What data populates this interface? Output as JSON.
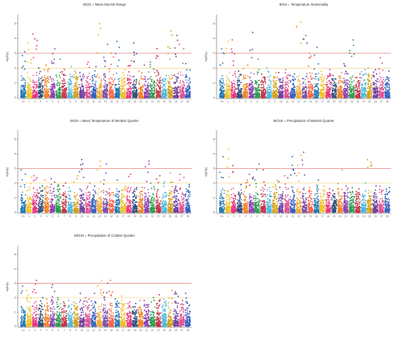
{
  "figure": {
    "chromosome_tick_labels": [
      "Un",
      "1",
      "2",
      "3",
      "4",
      "5",
      "6",
      "7",
      "8",
      "9",
      "10",
      "11",
      "12",
      "13",
      "14",
      "15",
      "16",
      "17",
      "18",
      "19",
      "20",
      "21",
      "22",
      "23",
      "24",
      "25",
      "26",
      "27",
      "28"
    ],
    "palette": [
      "#1f78b4",
      "#f0c020",
      "#e8347e",
      "#2f4f7f",
      "#f08020",
      "#8a3fb0",
      "#2a9d4a",
      "#c8324a",
      "#4ab8e0",
      "#d4a017",
      "#6b3fa0",
      "#e05090",
      "#3060c0",
      "#f4a82e",
      "#7a4fa8",
      "#ff6040"
    ],
    "threshold_colors": {
      "upper": "#e0706a",
      "lower": "#f0d080"
    }
  },
  "chart_data": [
    {
      "type": "scatter",
      "subtype": "manhattan",
      "title": "BIO2 = Mean Diurnal Range",
      "ylabel": "-log10(p)",
      "xlabel": "",
      "ylim": [
        0,
        5.5
      ],
      "yticks": [
        0,
        1,
        2,
        3,
        4,
        5
      ],
      "thresholds": [
        3.0,
        2.0
      ],
      "x": [
        "Un",
        "1",
        "2",
        "3",
        "4",
        "5",
        "6",
        "7",
        "8",
        "9",
        "10",
        "11",
        "12",
        "13",
        "14",
        "15",
        "16",
        "17",
        "18",
        "19",
        "20",
        "21",
        "22",
        "23",
        "24",
        "25",
        "26",
        "27",
        "28"
      ],
      "peaks": [
        3.1,
        3.7,
        4.3,
        2.0,
        2.2,
        3.3,
        2.6,
        1.9,
        2.1,
        1.8,
        1.7,
        2.4,
        2.1,
        5.0,
        3.6,
        3.0,
        3.8,
        1.9,
        2.5,
        3.7,
        1.8,
        2.2,
        2.4,
        3.3,
        1.5,
        4.5,
        4.2,
        3.6,
        2.3
      ]
    },
    {
      "type": "scatter",
      "subtype": "manhattan",
      "title": "BIO4 = Temperature Seasonality",
      "ylabel": "-log10(p)",
      "xlabel": "",
      "ylim": [
        0,
        5.5
      ],
      "yticks": [
        0,
        1,
        2,
        3,
        4,
        5
      ],
      "thresholds": [
        3.0,
        2.0
      ],
      "x": [
        "Un",
        "1",
        "2",
        "3",
        "4",
        "5",
        "6",
        "7",
        "8",
        "9",
        "10",
        "11",
        "12",
        "13",
        "14",
        "15",
        "16",
        "17",
        "18",
        "19",
        "20",
        "21",
        "22",
        "23",
        "24",
        "25",
        "26",
        "27",
        "28"
      ],
      "peaks": [
        3.3,
        3.8,
        3.9,
        1.8,
        2.2,
        4.4,
        2.6,
        1.6,
        2.0,
        1.7,
        1.7,
        1.9,
        1.6,
        5.1,
        4.2,
        3.0,
        3.4,
        1.8,
        1.9,
        1.5,
        1.7,
        2.3,
        3.9,
        1.6,
        1.9,
        2.0,
        1.9,
        2.7,
        1.8
      ]
    },
    {
      "type": "scatter",
      "subtype": "manhattan",
      "title": "BIO8 = Mean Temperature of Wettest Quarter",
      "ylabel": "-log10(p)",
      "xlabel": "",
      "ylim": [
        0,
        5.5
      ],
      "yticks": [
        0,
        1,
        2,
        3,
        4,
        5
      ],
      "thresholds": [
        3.0,
        2.0
      ],
      "x": [
        "Un",
        "1",
        "2",
        "3",
        "4",
        "5",
        "6",
        "7",
        "8",
        "9",
        "10",
        "11",
        "12",
        "13",
        "14",
        "15",
        "16",
        "17",
        "18",
        "19",
        "20",
        "21",
        "22",
        "23",
        "24",
        "25",
        "26",
        "27",
        "28"
      ],
      "peaks": [
        2.9,
        2.4,
        2.5,
        1.8,
        2.2,
        2.3,
        1.9,
        2.0,
        1.7,
        2.5,
        3.6,
        2.0,
        1.8,
        3.5,
        3.3,
        1.6,
        2.2,
        1.8,
        2.6,
        1.7,
        1.7,
        3.5,
        2.0,
        2.5,
        2.1,
        2.7,
        1.8,
        2.6,
        1.9
      ]
    },
    {
      "type": "scatter",
      "subtype": "manhattan",
      "title": "BIO16 = Precipitation of Wettest Quarter",
      "ylabel": "-log10(p)",
      "xlabel": "",
      "ylim": [
        0,
        5.5
      ],
      "yticks": [
        0,
        1,
        2,
        3,
        4,
        5
      ],
      "thresholds": [
        3.0,
        2.0
      ],
      "x": [
        "Un",
        "1",
        "2",
        "3",
        "4",
        "5",
        "6",
        "7",
        "8",
        "9",
        "10",
        "11",
        "12",
        "13",
        "14",
        "15",
        "16",
        "17",
        "18",
        "19",
        "20",
        "21",
        "22",
        "23",
        "24",
        "25",
        "26",
        "27",
        "28"
      ],
      "peaks": [
        3.8,
        4.3,
        3.2,
        1.9,
        2.2,
        2.6,
        3.3,
        2.9,
        1.7,
        2.2,
        2.1,
        2.5,
        3.8,
        3.9,
        4.1,
        1.7,
        2.2,
        1.8,
        1.6,
        1.5,
        2.9,
        1.8,
        1.7,
        1.6,
        2.0,
        3.6,
        1.8,
        1.8,
        1.7
      ]
    },
    {
      "type": "scatter",
      "subtype": "manhattan",
      "title": "BIO19 = Precipitation of Coldest Quarter",
      "ylabel": "-log10(p)",
      "xlabel": "",
      "ylim": [
        0,
        5.5
      ],
      "yticks": [
        0,
        1,
        2,
        3,
        4,
        5
      ],
      "thresholds": [
        3.0,
        2.0
      ],
      "x": [
        "Un",
        "1",
        "2",
        "3",
        "4",
        "5",
        "6",
        "7",
        "8",
        "9",
        "10",
        "11",
        "12",
        "13",
        "14",
        "15",
        "16",
        "17",
        "18",
        "19",
        "20",
        "21",
        "22",
        "23",
        "24",
        "25",
        "26",
        "27",
        "28"
      ],
      "peaks": [
        2.8,
        2.5,
        3.2,
        2.0,
        1.9,
        2.9,
        2.0,
        1.7,
        1.8,
        1.7,
        2.3,
        2.0,
        2.3,
        3.2,
        3.0,
        3.2,
        1.9,
        2.1,
        1.7,
        1.6,
        1.8,
        1.8,
        2.0,
        2.2,
        1.9,
        2.5,
        2.4,
        1.8,
        2.3
      ]
    }
  ]
}
